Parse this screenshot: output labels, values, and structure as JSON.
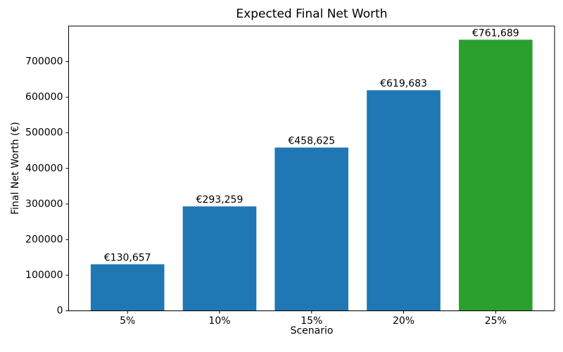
{
  "figure": {
    "background": "#ffffff"
  },
  "chart_data": {
    "type": "bar",
    "title": "Expected Final Net Worth",
    "xlabel": "Scenario",
    "ylabel": "Final Net Worth (€)",
    "categories": [
      "5%",
      "10%",
      "15%",
      "20%",
      "25%"
    ],
    "values": [
      130657,
      293259,
      458625,
      619683,
      761689
    ],
    "value_labels": [
      "€130,657",
      "€293,259",
      "€458,625",
      "€619,683",
      "€761,689"
    ],
    "bar_colors": [
      "#1f77b4",
      "#1f77b4",
      "#1f77b4",
      "#1f77b4",
      "#2ca02c"
    ],
    "yticks": [
      0,
      100000,
      200000,
      300000,
      400000,
      500000,
      600000,
      700000
    ],
    "ytick_labels": [
      "0",
      "100000",
      "200000",
      "300000",
      "400000",
      "500000",
      "600000",
      "700000"
    ],
    "ylim": [
      0,
      800000
    ],
    "grid": false,
    "legend": null,
    "axis_color": "#000000",
    "bar_width_fraction": 0.8
  }
}
